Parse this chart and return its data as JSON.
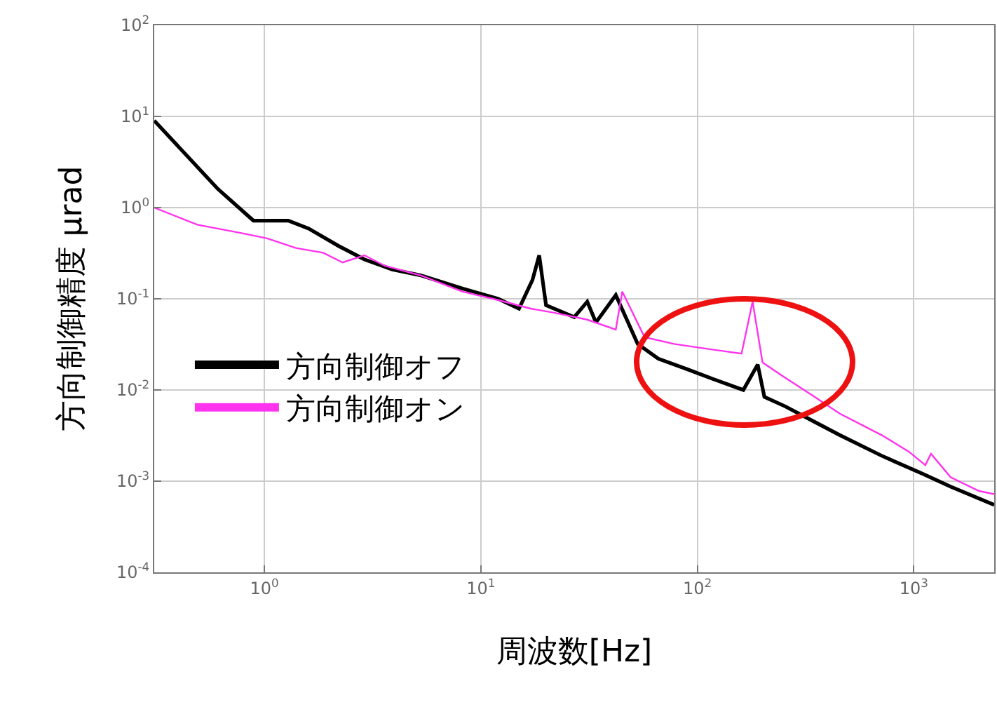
{
  "chart_data": {
    "type": "line",
    "xlabel": "周波数[Hz]",
    "ylabel": "方向制御精度 μrad",
    "log": "xy",
    "xlim": [
      0.31,
      2350
    ],
    "ylim": [
      0.0001,
      100
    ],
    "xticks": [
      {
        "value": 1,
        "label": "10$^{0}$"
      },
      {
        "value": 10,
        "label": "10$^{1}$"
      },
      {
        "value": 100,
        "label": "10$^{2}$"
      },
      {
        "value": 1000,
        "label": "10$^{3}$"
      }
    ],
    "yticks": [
      {
        "value": 0.0001,
        "label": "10$^{-4}$"
      },
      {
        "value": 0.001,
        "label": "10$^{-3}$"
      },
      {
        "value": 0.01,
        "label": "10$^{-2}$"
      },
      {
        "value": 0.1,
        "label": "10$^{-1}$"
      },
      {
        "value": 1,
        "label": "10$^{0}$"
      },
      {
        "value": 10,
        "label": "10$^{1}$"
      },
      {
        "value": 100,
        "label": "10$^{2}$"
      }
    ],
    "grid": true,
    "legend": "left",
    "series": [
      {
        "name": "方向制御オフ",
        "color": "#000000",
        "x": [
          0.31,
          0.61,
          0.89,
          1.29,
          1.6,
          2.2,
          2.9,
          3.9,
          5.3,
          8.2,
          12,
          15,
          17.3,
          18.6,
          20,
          27,
          31,
          34,
          42,
          53,
          66,
          89,
          120,
          163,
          190,
          204,
          255,
          340,
          455,
          710,
          1100,
          1480,
          2350
        ],
        "values": [
          9,
          1.6,
          0.72,
          0.72,
          0.59,
          0.38,
          0.27,
          0.21,
          0.18,
          0.13,
          0.1,
          0.078,
          0.16,
          0.3,
          0.085,
          0.063,
          0.093,
          0.055,
          0.11,
          0.032,
          0.022,
          0.017,
          0.013,
          0.01,
          0.019,
          0.0084,
          0.0066,
          0.0046,
          0.0032,
          0.0019,
          0.0012,
          0.00087,
          0.00055
        ]
      },
      {
        "name": "方向制御オン",
        "color": "#ff33ee",
        "x": [
          0.31,
          0.49,
          0.77,
          1.03,
          1.4,
          1.87,
          2.3,
          2.9,
          3.6,
          5.3,
          8.2,
          12,
          17,
          22,
          31,
          42,
          45,
          57,
          78,
          103,
          160,
          180,
          200,
          250,
          340,
          455,
          710,
          950,
          1130,
          1200,
          1480,
          2000,
          2350
        ],
        "values": [
          1.0,
          0.65,
          0.53,
          0.46,
          0.36,
          0.32,
          0.25,
          0.3,
          0.23,
          0.18,
          0.12,
          0.097,
          0.078,
          0.07,
          0.059,
          0.046,
          0.12,
          0.038,
          0.032,
          0.029,
          0.025,
          0.093,
          0.02,
          0.014,
          0.0087,
          0.0055,
          0.0032,
          0.0021,
          0.0015,
          0.002,
          0.0011,
          0.00078,
          0.00072
        ]
      }
    ]
  }
}
